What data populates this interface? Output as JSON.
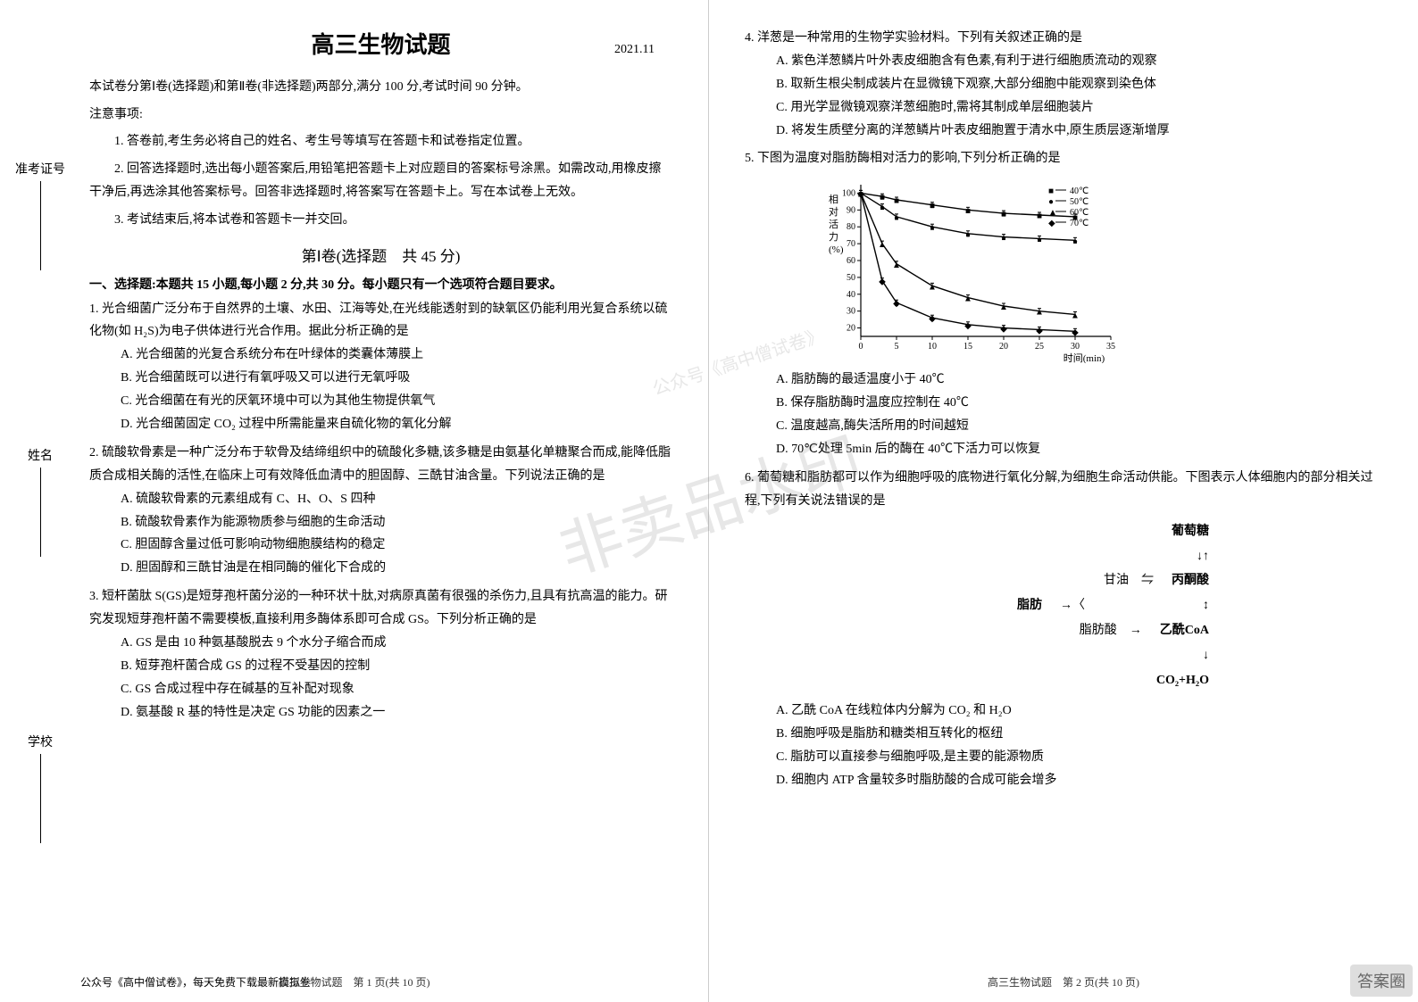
{
  "header": {
    "title": "高三生物试题",
    "date": "2021.11"
  },
  "side_labels": [
    "准考证号",
    "姓名",
    "学校"
  ],
  "intro": {
    "line1": "本试卷分第Ⅰ卷(选择题)和第Ⅱ卷(非选择题)两部分,满分 100 分,考试时间 90 分钟。",
    "line2": "注意事项:",
    "line3": "1. 答卷前,考生务必将自己的姓名、考生号等填写在答题卡和试卷指定位置。",
    "line4": "2. 回答选择题时,选出每小题答案后,用铅笔把答题卡上对应题目的答案标号涂黑。如需改动,用橡皮擦干净后,再选涂其他答案标号。回答非选择题时,将答案写在答题卡上。写在本试卷上无效。",
    "line5": "3. 考试结束后,将本试卷和答题卡一并交回。"
  },
  "section1": {
    "title": "第Ⅰ卷(选择题　共 45 分)",
    "qhead": "一、选择题:本题共 15 小题,每小题 2 分,共 30 分。每小题只有一个选项符合题目要求。"
  },
  "questions_left": [
    {
      "stem": "1. 光合细菌广泛分布于自然界的土壤、水田、江海等处,在光线能透射到的缺氧区仍能利用光复合系统以硫化物(如 H₂S)为电子供体进行光合作用。据此分析正确的是",
      "opts": [
        "A. 光合细菌的光复合系统分布在叶绿体的类囊体薄膜上",
        "B. 光合细菌既可以进行有氧呼吸又可以进行无氧呼吸",
        "C. 光合细菌在有光的厌氧环境中可以为其他生物提供氧气",
        "D. 光合细菌固定 CO₂ 过程中所需能量来自硫化物的氧化分解"
      ]
    },
    {
      "stem": "2. 硫酸软骨素是一种广泛分布于软骨及结缔组织中的硫酸化多糖,该多糖是由氨基化单糖聚合而成,能降低脂质合成相关酶的活性,在临床上可有效降低血清中的胆固醇、三酰甘油含量。下列说法正确的是",
      "opts": [
        "A. 硫酸软骨素的元素组成有 C、H、O、S 四种",
        "B. 硫酸软骨素作为能源物质参与细胞的生命活动",
        "C. 胆固醇含量过低可影响动物细胞膜结构的稳定",
        "D. 胆固醇和三酰甘油是在相同酶的催化下合成的"
      ]
    },
    {
      "stem": "3. 短杆菌肽 S(GS)是短芽孢杆菌分泌的一种环状十肽,对病原真菌有很强的杀伤力,且具有抗高温的能力。研究发现短芽孢杆菌不需要模板,直接利用多酶体系即可合成 GS。下列分析正确的是",
      "opts": [
        "A. GS 是由 10 种氨基酸脱去 9 个水分子缩合而成",
        "B. 短芽孢杆菌合成 GS 的过程不受基因的控制",
        "C. GS 合成过程中存在碱基的互补配对现象",
        "D. 氨基酸 R 基的特性是决定 GS 功能的因素之一"
      ]
    }
  ],
  "questions_right": [
    {
      "stem": "4. 洋葱是一种常用的生物学实验材料。下列有关叙述正确的是",
      "opts": [
        "A. 紫色洋葱鳞片叶外表皮细胞含有色素,有利于进行细胞质流动的观察",
        "B. 取新生根尖制成装片在显微镜下观察,大部分细胞中能观察到染色体",
        "C. 用光学显微镜观察洋葱细胞时,需将其制成单层细胞装片",
        "D. 将发生质壁分离的洋葱鳞片叶表皮细胞置于清水中,原生质层逐渐增厚"
      ]
    },
    {
      "stem": "5. 下图为温度对脂肪酶相对活力的影响,下列分析正确的是",
      "chart": {
        "type": "line",
        "xlabel": "时间(min)",
        "ylabel": "相对活力(%)",
        "xlim": [
          0,
          35
        ],
        "xticks": [
          0,
          5,
          10,
          15,
          20,
          25,
          30,
          35
        ],
        "ylim": [
          15,
          105
        ],
        "yticks": [
          20,
          30,
          40,
          50,
          60,
          70,
          80,
          90,
          100
        ],
        "background_color": "#ffffff",
        "grid": false,
        "axis_color": "#000000",
        "label_fontsize": 11,
        "tick_fontsize": 10,
        "legend_pos": "top-right",
        "series": [
          {
            "name": "40℃",
            "marker": "square",
            "color": "#000000",
            "x": [
              0,
              3,
              5,
              10,
              15,
              20,
              25,
              30
            ],
            "y": [
              100,
              98,
              96,
              93,
              90,
              88,
              87,
              86
            ]
          },
          {
            "name": "50℃",
            "marker": "circle",
            "color": "#000000",
            "x": [
              0,
              3,
              5,
              10,
              15,
              20,
              25,
              30
            ],
            "y": [
              100,
              92,
              86,
              80,
              76,
              74,
              73,
              72
            ]
          },
          {
            "name": "60℃",
            "marker": "triangle",
            "color": "#000000",
            "x": [
              0,
              3,
              5,
              10,
              15,
              20,
              25,
              30
            ],
            "y": [
              100,
              70,
              58,
              45,
              38,
              33,
              30,
              28
            ]
          },
          {
            "name": "70℃",
            "marker": "diamond",
            "color": "#000000",
            "x": [
              0,
              3,
              5,
              10,
              15,
              20,
              25,
              30
            ],
            "y": [
              100,
              48,
              35,
              26,
              22,
              20,
              19,
              18
            ]
          }
        ],
        "line_width": 1.4,
        "marker_size": 5,
        "error_bar": 3
      },
      "opts": [
        "A. 脂肪酶的最适温度小于 40℃",
        "B. 保存脂肪酶时温度应控制在 40℃",
        "C. 温度越高,酶失活所用的时间越短",
        "D. 70℃处理 5min 后的酶在 40℃下活力可以恢复"
      ]
    },
    {
      "stem": "6. 葡萄糖和脂肪都可以作为细胞呼吸的底物进行氧化分解,为细胞生命活动供能。下图表示人体细胞内的部分相关过程,下列有关说法错误的是",
      "diagram": {
        "nodes": [
          "脂肪",
          "甘油",
          "脂肪酸",
          "葡萄糖",
          "丙酮酸",
          "乙酰CoA",
          "CO₂+H₂O"
        ],
        "edges": [
          [
            "脂肪",
            "甘油",
            "→"
          ],
          [
            "脂肪",
            "脂肪酸",
            "→"
          ],
          [
            "甘油",
            "丙酮酸",
            "⇋"
          ],
          [
            "葡萄糖",
            "丙酮酸",
            "↓"
          ],
          [
            "脂肪酸",
            "乙酰CoA",
            "→"
          ],
          [
            "丙酮酸",
            "乙酰CoA",
            "↕"
          ],
          [
            "乙酰CoA",
            "CO₂+H₂O",
            "↓"
          ]
        ],
        "font_size": 14,
        "arrow_color": "#000000"
      },
      "opts": [
        "A. 乙酰 CoA 在线粒体内分解为 CO₂ 和 H₂O",
        "B. 细胞呼吸是脂肪和糖类相互转化的枢纽",
        "C. 脂肪可以直接参与细胞呼吸,是主要的能源物质",
        "D. 细胞内 ATP 含量较多时脂肪酸的合成可能会增多"
      ]
    }
  ],
  "footer": {
    "left_extra": "公众号《高中僧试卷》，每天免费下载最新模拟卷",
    "left_page": "高三生物试题　第 1 页(共 10 页)",
    "right_page": "高三生物试题　第 2 页(共 10 页)"
  },
  "watermark": {
    "large": "非卖品水印",
    "small": "公众号《高中僧试卷》"
  },
  "corner_logo": "答案圈"
}
